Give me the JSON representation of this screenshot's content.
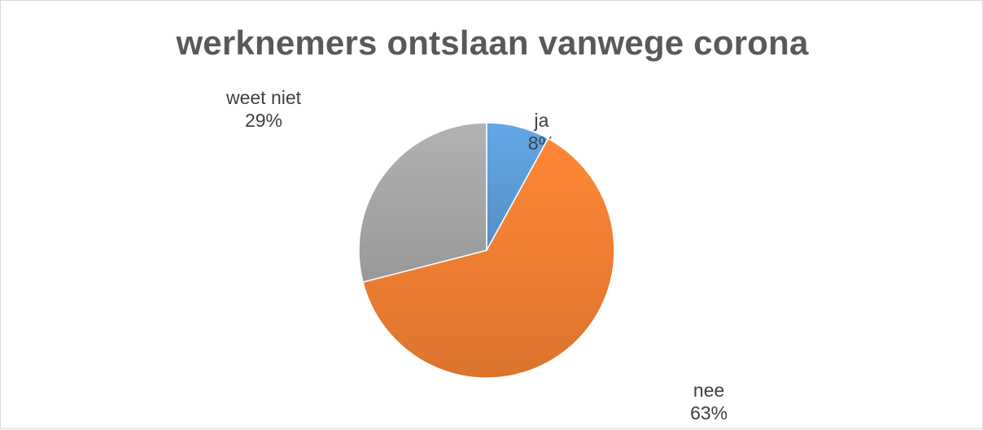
{
  "chart_data": {
    "type": "pie",
    "title": "werknemers ontslaan vanwege corona",
    "slices": [
      {
        "label": "ja",
        "value": 8,
        "value_label": "8%",
        "color": "#5b9bd5"
      },
      {
        "label": "nee",
        "value": 63,
        "value_label": "63%",
        "color": "#ed7d31"
      },
      {
        "label": "weet niet",
        "value": 29,
        "value_label": "29%",
        "color": "#a5a5a5"
      }
    ],
    "legend": "none",
    "data_labels": "outside"
  }
}
